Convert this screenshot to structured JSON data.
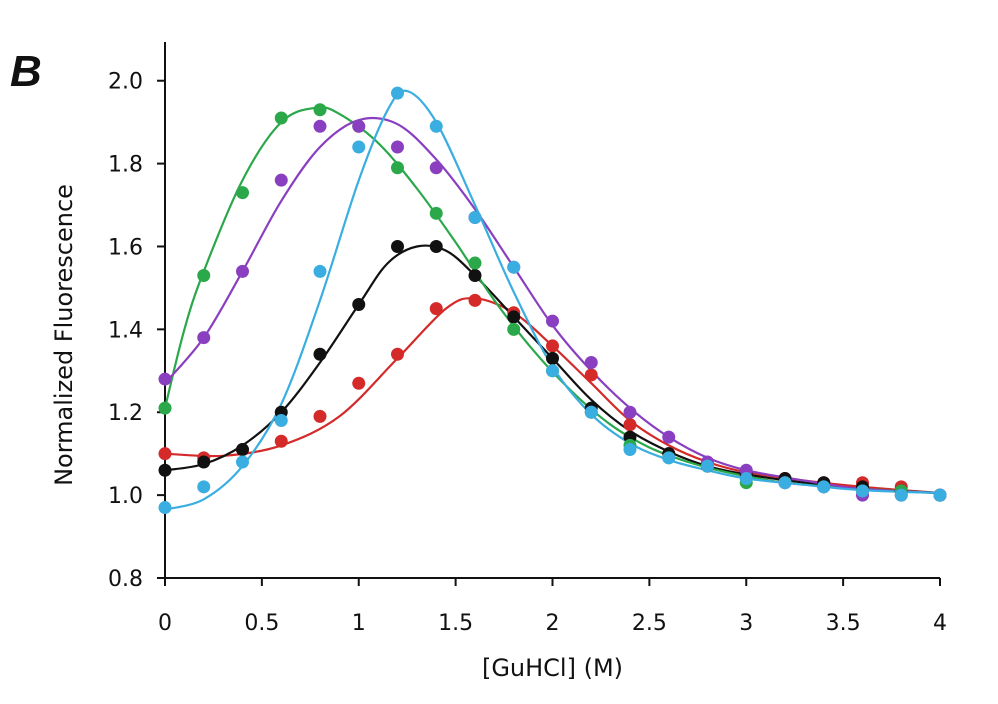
{
  "panel_label": "B",
  "chart_data": {
    "type": "scatter",
    "title": "",
    "xlabel": "[GuHCl] (M)",
    "ylabel": "Normalized Fluorescence",
    "xlim": [
      0,
      4
    ],
    "ylim": [
      0.8,
      2.05
    ],
    "xticks": [
      0,
      0.5,
      1,
      1.5,
      2,
      2.5,
      3,
      3.5,
      4
    ],
    "xtick_labels": [
      "0",
      "0.5",
      "1",
      "1.5",
      "2",
      "2.5",
      "3",
      "3.5",
      "4"
    ],
    "yticks": [
      0.8,
      1.0,
      1.2,
      1.4,
      1.6,
      1.8,
      2.0
    ],
    "ytick_labels": [
      "0.8",
      "1.0",
      "1.2",
      "1.4",
      "1.6",
      "1.8",
      "2.0"
    ],
    "grid": false,
    "legend": "none",
    "series": [
      {
        "color": "#d42a2a",
        "x": [
          0,
          0.2,
          0.4,
          0.6,
          0.8,
          1.0,
          1.2,
          1.4,
          1.6,
          1.8,
          2.0,
          2.2,
          2.4,
          2.6,
          2.8,
          3.0,
          3.2,
          3.4,
          3.6,
          3.8,
          4.0
        ],
        "y": [
          1.1,
          1.09,
          1.11,
          1.13,
          1.19,
          1.27,
          1.34,
          1.45,
          1.47,
          1.44,
          1.36,
          1.29,
          1.17,
          1.1,
          1.07,
          1.05,
          1.04,
          1.03,
          1.03,
          1.02,
          1.0
        ],
        "fit": [
          [
            0,
            1.1
          ],
          [
            0.3,
            1.095
          ],
          [
            0.6,
            1.12
          ],
          [
            0.9,
            1.19
          ],
          [
            1.2,
            1.33
          ],
          [
            1.45,
            1.45
          ],
          [
            1.6,
            1.475
          ],
          [
            1.8,
            1.44
          ],
          [
            2.0,
            1.36
          ],
          [
            2.2,
            1.27
          ],
          [
            2.4,
            1.18
          ],
          [
            2.6,
            1.12
          ],
          [
            2.8,
            1.08
          ],
          [
            3.0,
            1.055
          ],
          [
            3.3,
            1.035
          ],
          [
            3.6,
            1.02
          ],
          [
            4.0,
            1.005
          ]
        ]
      },
      {
        "color": "#111111",
        "x": [
          0,
          0.2,
          0.4,
          0.6,
          0.8,
          1.0,
          1.2,
          1.4,
          1.6,
          1.8,
          2.0,
          2.2,
          2.4,
          2.6,
          2.8,
          3.0,
          3.2,
          3.4,
          3.6,
          3.8,
          4.0
        ],
        "y": [
          1.06,
          1.08,
          1.11,
          1.2,
          1.34,
          1.46,
          1.6,
          1.6,
          1.53,
          1.43,
          1.33,
          1.21,
          1.14,
          1.1,
          1.07,
          1.05,
          1.04,
          1.03,
          1.02,
          1.01,
          1.0
        ],
        "fit": [
          [
            0,
            1.06
          ],
          [
            0.2,
            1.075
          ],
          [
            0.4,
            1.12
          ],
          [
            0.6,
            1.2
          ],
          [
            0.8,
            1.32
          ],
          [
            1.0,
            1.46
          ],
          [
            1.15,
            1.56
          ],
          [
            1.3,
            1.6
          ],
          [
            1.45,
            1.59
          ],
          [
            1.6,
            1.53
          ],
          [
            1.8,
            1.43
          ],
          [
            2.0,
            1.33
          ],
          [
            2.2,
            1.23
          ],
          [
            2.4,
            1.155
          ],
          [
            2.6,
            1.105
          ],
          [
            2.8,
            1.07
          ],
          [
            3.0,
            1.05
          ],
          [
            3.3,
            1.03
          ],
          [
            3.6,
            1.015
          ],
          [
            4.0,
            1.005
          ]
        ]
      },
      {
        "color": "#2aa84a",
        "x": [
          0,
          0.2,
          0.4,
          0.6,
          0.8,
          1.0,
          1.2,
          1.4,
          1.6,
          1.8,
          2.0,
          2.2,
          2.4,
          2.6,
          2.8,
          3.0,
          3.2,
          3.4,
          3.6,
          3.8,
          4.0
        ],
        "y": [
          1.21,
          1.53,
          1.73,
          1.91,
          1.93,
          1.89,
          1.79,
          1.68,
          1.56,
          1.4,
          1.3,
          1.2,
          1.12,
          1.09,
          1.07,
          1.03,
          1.03,
          1.02,
          1.01,
          1.01,
          1.0
        ],
        "fit": [
          [
            0,
            1.21
          ],
          [
            0.1,
            1.4
          ],
          [
            0.2,
            1.54
          ],
          [
            0.4,
            1.76
          ],
          [
            0.6,
            1.9
          ],
          [
            0.78,
            1.935
          ],
          [
            0.9,
            1.92
          ],
          [
            1.1,
            1.85
          ],
          [
            1.3,
            1.74
          ],
          [
            1.5,
            1.61
          ],
          [
            1.7,
            1.47
          ],
          [
            1.9,
            1.35
          ],
          [
            2.1,
            1.25
          ],
          [
            2.3,
            1.17
          ],
          [
            2.5,
            1.115
          ],
          [
            2.7,
            1.08
          ],
          [
            2.9,
            1.055
          ],
          [
            3.2,
            1.03
          ],
          [
            3.6,
            1.015
          ],
          [
            4.0,
            1.005
          ]
        ]
      },
      {
        "color": "#8a3fc0",
        "x": [
          0,
          0.2,
          0.4,
          0.6,
          0.8,
          1.0,
          1.2,
          1.4,
          1.6,
          1.8,
          2.0,
          2.2,
          2.4,
          2.6,
          2.8,
          3.0,
          3.2,
          3.4,
          3.6,
          3.8,
          4.0
        ],
        "y": [
          1.28,
          1.38,
          1.54,
          1.76,
          1.89,
          1.89,
          1.84,
          1.79,
          1.67,
          1.55,
          1.42,
          1.32,
          1.2,
          1.14,
          1.08,
          1.06,
          1.03,
          1.02,
          1.0,
          1.0,
          1.0
        ],
        "fit": [
          [
            0,
            1.27
          ],
          [
            0.2,
            1.38
          ],
          [
            0.4,
            1.54
          ],
          [
            0.6,
            1.71
          ],
          [
            0.8,
            1.84
          ],
          [
            1.0,
            1.905
          ],
          [
            1.2,
            1.895
          ],
          [
            1.4,
            1.81
          ],
          [
            1.6,
            1.69
          ],
          [
            1.8,
            1.55
          ],
          [
            2.0,
            1.41
          ],
          [
            2.2,
            1.3
          ],
          [
            2.4,
            1.21
          ],
          [
            2.6,
            1.14
          ],
          [
            2.8,
            1.09
          ],
          [
            3.0,
            1.06
          ],
          [
            3.3,
            1.035
          ],
          [
            3.6,
            1.015
          ],
          [
            4.0,
            1.005
          ]
        ]
      },
      {
        "color": "#3aaee0",
        "x": [
          0,
          0.2,
          0.4,
          0.6,
          0.8,
          1.0,
          1.2,
          1.4,
          1.6,
          1.8,
          2.0,
          2.2,
          2.4,
          2.6,
          2.8,
          3.0,
          3.2,
          3.4,
          3.6,
          3.8,
          4.0
        ],
        "y": [
          0.97,
          1.02,
          1.08,
          1.18,
          1.54,
          1.84,
          1.97,
          1.89,
          1.67,
          1.55,
          1.3,
          1.2,
          1.11,
          1.09,
          1.07,
          1.04,
          1.03,
          1.02,
          1.01,
          1.0,
          1.0
        ],
        "fit": [
          [
            0,
            0.965
          ],
          [
            0.2,
            0.99
          ],
          [
            0.4,
            1.07
          ],
          [
            0.6,
            1.22
          ],
          [
            0.8,
            1.47
          ],
          [
            1.0,
            1.76
          ],
          [
            1.15,
            1.93
          ],
          [
            1.25,
            1.975
          ],
          [
            1.4,
            1.9
          ],
          [
            1.6,
            1.7
          ],
          [
            1.8,
            1.49
          ],
          [
            2.0,
            1.31
          ],
          [
            2.2,
            1.195
          ],
          [
            2.4,
            1.125
          ],
          [
            2.6,
            1.085
          ],
          [
            2.8,
            1.06
          ],
          [
            3.0,
            1.04
          ],
          [
            3.3,
            1.025
          ],
          [
            3.6,
            1.012
          ],
          [
            4.0,
            1.005
          ]
        ]
      }
    ]
  }
}
